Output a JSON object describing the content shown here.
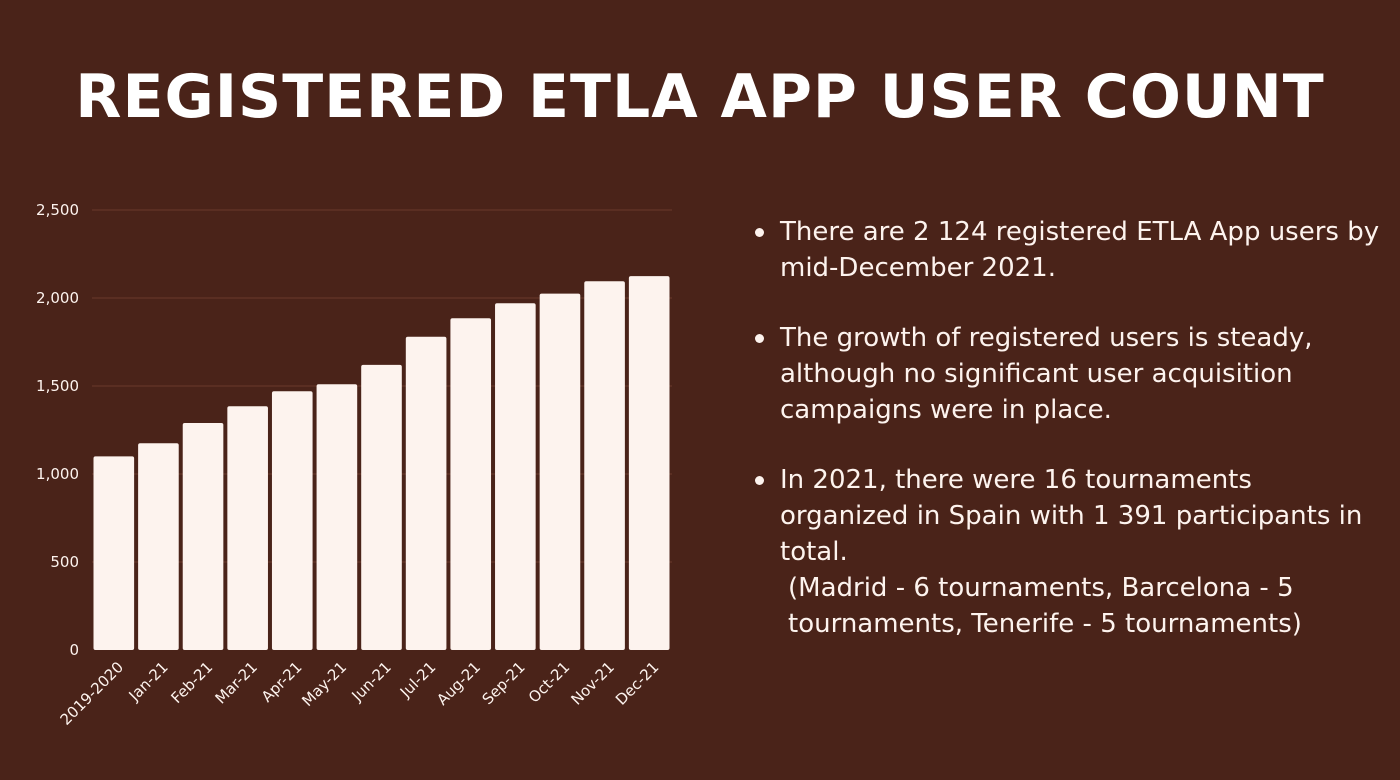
{
  "title": "REGISTERED ETLA APP USER COUNT",
  "bullets": [
    "There are 2 124 registered ETLA App users by mid-December 2021.",
    "The growth of registered users is steady, although no significant user acquisition campaigns were in place.",
    "In 2021, there were 16 tournaments organized in Spain with 1 391 participants in total."
  ],
  "bullet_note": "(Madrid - 6 tournaments, Barcelona - 5 tournaments, Tenerife - 5 tournaments)",
  "colors": {
    "background": "#4a2319",
    "bar": "#fdf3ee",
    "text": "#fdf3ee",
    "grid": "#6a3a2c"
  },
  "chart_data": {
    "type": "bar",
    "categories": [
      "2019-2020",
      "Jan-21",
      "Feb-21",
      "Mar-21",
      "Apr-21",
      "May-21",
      "Jun-21",
      "Jul-21",
      "Aug-21",
      "Sep-21",
      "Oct-21",
      "Nov-21",
      "Dec-21"
    ],
    "values": [
      1100,
      1175,
      1290,
      1385,
      1470,
      1510,
      1620,
      1780,
      1885,
      1970,
      2025,
      2095,
      2124
    ],
    "ylim": [
      0,
      2500
    ],
    "yticks": [
      0,
      500,
      1000,
      1500,
      2000,
      2500
    ],
    "ytick_labels": [
      "0",
      "500",
      "1,000",
      "1,500",
      "2,000",
      "2,500"
    ],
    "xlabel": "",
    "ylabel": "",
    "grid": true,
    "legend": "none"
  }
}
